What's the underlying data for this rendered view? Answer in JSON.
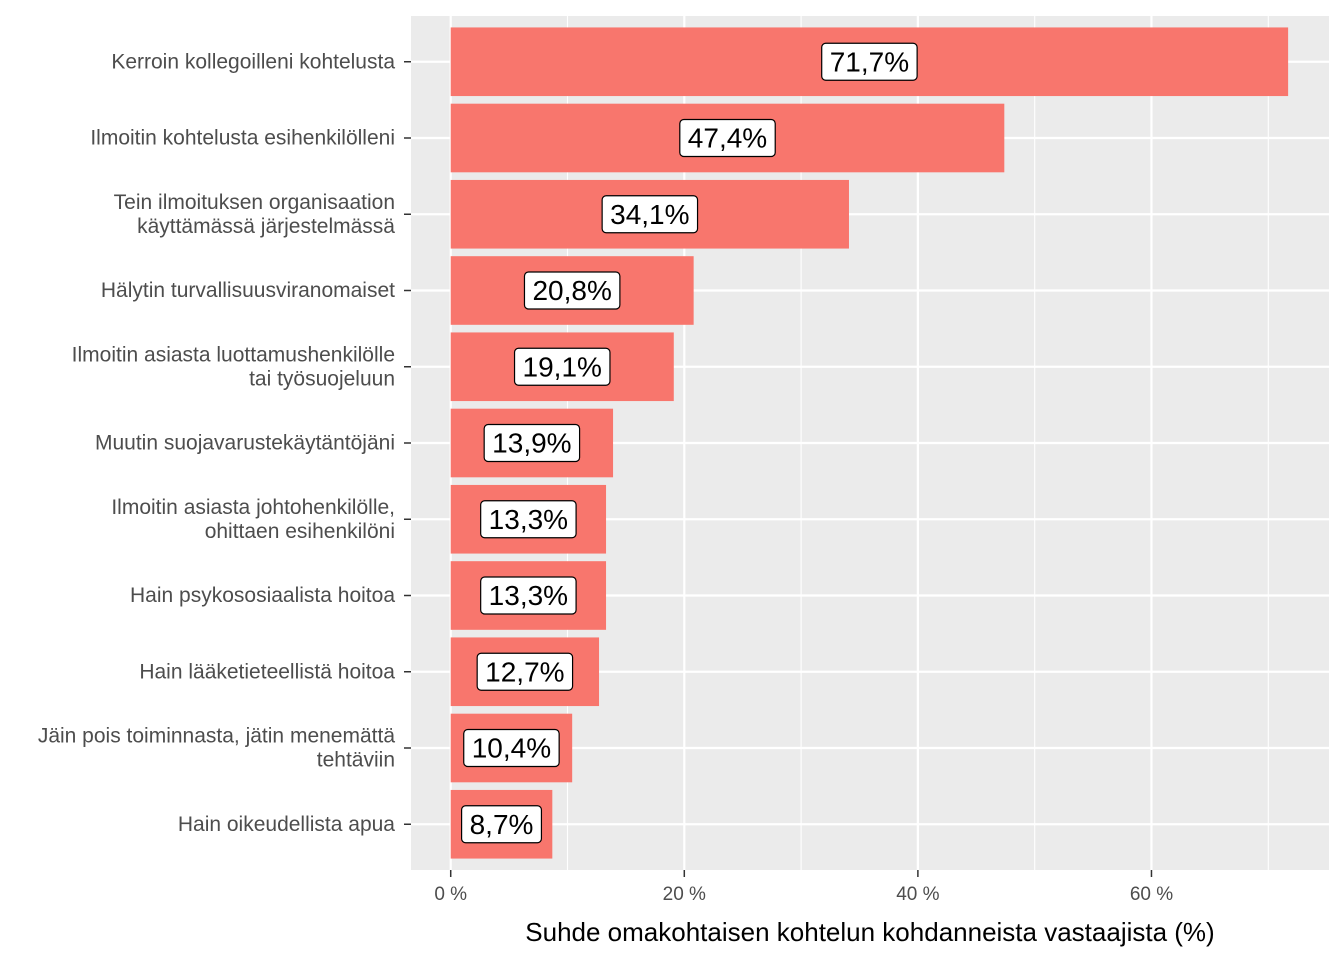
{
  "chart_data": {
    "type": "bar",
    "orientation": "horizontal",
    "categories": [
      [
        "Kerroin kollegoilleni kohtelusta"
      ],
      [
        "Ilmoitin kohtelusta esihenkilölleni"
      ],
      [
        "Tein ilmoituksen organisaation",
        "käyttämässä järjestelmässä"
      ],
      [
        "Hälytin turvallisuusviranomaiset"
      ],
      [
        "Ilmoitin asiasta luottamushenkilölle",
        "tai työsuojeluun"
      ],
      [
        "Muutin suojavarustekäytäntöjäni"
      ],
      [
        "Ilmoitin asiasta johtohenkilölle,",
        "ohittaen esihenkilöni"
      ],
      [
        "Hain psykososiaalista hoitoa"
      ],
      [
        "Hain lääketieteellistä hoitoa"
      ],
      [
        "Jäin pois toiminnasta, jätin menemättä",
        "tehtäviin"
      ],
      [
        "Hain oikeudellista apua"
      ]
    ],
    "values": [
      71.7,
      47.4,
      34.1,
      20.8,
      19.1,
      13.9,
      13.3,
      13.3,
      12.7,
      10.4,
      8.7
    ],
    "data_labels": [
      "71,7%",
      "47,4%",
      "34,1%",
      "20,8%",
      "19,1%",
      "13,9%",
      "13,3%",
      "13,3%",
      "12,7%",
      "10,4%",
      "8,7%"
    ],
    "xlabel": "Suhde omakohtaisen kohtelun kohdanneista vastaajista (%)",
    "ylabel": "",
    "xlim": [
      -3.4,
      75.2
    ],
    "x_ticks": [
      0,
      20,
      40,
      60
    ],
    "x_tick_labels": [
      "0 %",
      "20 %",
      "40 %",
      "60 %"
    ],
    "grid": true,
    "bar_color": "#f8766d",
    "panel_color": "#ebebeb",
    "grid_color": "#ffffff"
  }
}
